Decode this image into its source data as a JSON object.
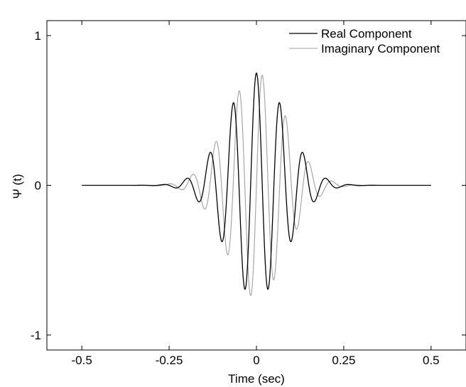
{
  "chart_data": {
    "type": "line",
    "title": "",
    "xlabel": "Time (sec)",
    "ylabel": "Ψ (t)",
    "xlim": [
      -0.6,
      0.6
    ],
    "ylim": [
      -1.1,
      1.1
    ],
    "x_ticks": [
      -0.5,
      -0.25,
      0,
      0.25,
      0.5
    ],
    "x_tick_labels": [
      "-0.5",
      "-0.25",
      "0",
      "0.25",
      "0.5"
    ],
    "y_ticks": [
      -1,
      0,
      1
    ],
    "y_tick_labels": [
      "-1",
      "0",
      "1"
    ],
    "x_range": [
      -0.5,
      0.5
    ],
    "grid": false,
    "legend_position": "top-right",
    "wavelet": {
      "amplitude": 0.75,
      "frequency_hz": 15,
      "decay": 70
    },
    "series": [
      {
        "name": "Real Component",
        "color": "#000000",
        "component": "real"
      },
      {
        "name": "Imaginary Component",
        "color": "#a0a0a0",
        "component": "imaginary"
      }
    ]
  }
}
